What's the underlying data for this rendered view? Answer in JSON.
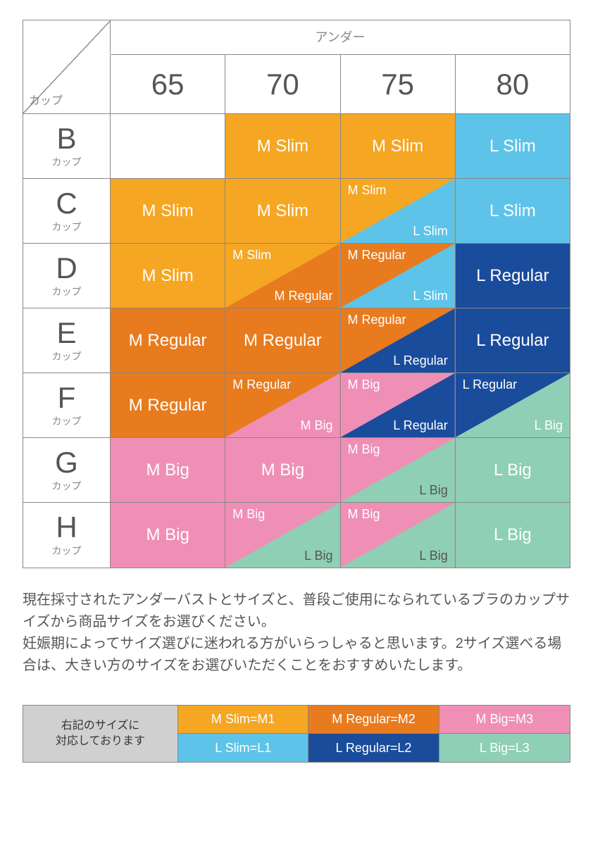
{
  "colors": {
    "m_slim": "#f5a623",
    "l_slim": "#5ec3e8",
    "m_regular": "#e87b1e",
    "l_regular": "#1a4c9c",
    "m_big": "#ef8fb6",
    "l_big": "#8fcfb5",
    "grey": "#d0d0d0"
  },
  "header": {
    "under": "アンダー",
    "cup": "カップ",
    "cols": [
      "65",
      "70",
      "75",
      "80"
    ]
  },
  "rows_label_sub": "カップ",
  "rows": [
    "B",
    "C",
    "D",
    "E",
    "F",
    "G",
    "H"
  ],
  "cells": {
    "B": [
      {
        "type": "empty"
      },
      {
        "type": "solid",
        "bg": "m_slim",
        "label": "M Slim",
        "txt": "white"
      },
      {
        "type": "solid",
        "bg": "m_slim",
        "label": "M Slim",
        "txt": "white"
      },
      {
        "type": "solid",
        "bg": "l_slim",
        "label": "L Slim",
        "txt": "white"
      }
    ],
    "C": [
      {
        "type": "solid",
        "bg": "m_slim",
        "label": "M Slim",
        "txt": "white"
      },
      {
        "type": "solid",
        "bg": "m_slim",
        "label": "M Slim",
        "txt": "white"
      },
      {
        "type": "split",
        "top_bg": "m_slim",
        "bot_bg": "l_slim",
        "top_label": "M Slim",
        "bot_label": "L Slim",
        "top_txt": "white",
        "bot_txt": "white"
      },
      {
        "type": "solid",
        "bg": "l_slim",
        "label": "L Slim",
        "txt": "white"
      }
    ],
    "D": [
      {
        "type": "solid",
        "bg": "m_slim",
        "label": "M Slim",
        "txt": "white"
      },
      {
        "type": "split",
        "top_bg": "m_slim",
        "bot_bg": "m_regular",
        "top_label": "M Slim",
        "bot_label": "M Regular",
        "top_txt": "white",
        "bot_txt": "white"
      },
      {
        "type": "split",
        "top_bg": "m_regular",
        "bot_bg": "l_slim",
        "top_label": "M Regular",
        "bot_label": "L Slim",
        "top_txt": "white",
        "bot_txt": "white"
      },
      {
        "type": "solid",
        "bg": "l_regular",
        "label": "L Regular",
        "txt": "white"
      }
    ],
    "E": [
      {
        "type": "solid",
        "bg": "m_regular",
        "label": "M Regular",
        "txt": "white"
      },
      {
        "type": "solid",
        "bg": "m_regular",
        "label": "M Regular",
        "txt": "white"
      },
      {
        "type": "split",
        "top_bg": "m_regular",
        "bot_bg": "l_regular",
        "top_label": "M Regular",
        "bot_label": "L Regular",
        "top_txt": "white",
        "bot_txt": "white"
      },
      {
        "type": "solid",
        "bg": "l_regular",
        "label": "L Regular",
        "txt": "white"
      }
    ],
    "F": [
      {
        "type": "solid",
        "bg": "m_regular",
        "label": "M Regular",
        "txt": "white"
      },
      {
        "type": "split",
        "top_bg": "m_regular",
        "bot_bg": "m_big",
        "top_label": "M Regular",
        "bot_label": "M Big",
        "top_txt": "white",
        "bot_txt": "white"
      },
      {
        "type": "split",
        "top_bg": "m_big",
        "bot_bg": "l_regular",
        "top_label": "M Big",
        "bot_label": "L Regular",
        "top_txt": "white",
        "bot_txt": "white"
      },
      {
        "type": "split",
        "top_bg": "l_regular",
        "bot_bg": "l_big",
        "top_label": "L Regular",
        "bot_label": "L Big",
        "top_txt": "white",
        "bot_txt": "white"
      }
    ],
    "G": [
      {
        "type": "solid",
        "bg": "m_big",
        "label": "M Big",
        "txt": "white"
      },
      {
        "type": "solid",
        "bg": "m_big",
        "label": "M Big",
        "txt": "white"
      },
      {
        "type": "split",
        "top_bg": "m_big",
        "bot_bg": "l_big",
        "top_label": "M Big",
        "bot_label": "L Big",
        "top_txt": "white",
        "bot_txt": "dark"
      },
      {
        "type": "solid",
        "bg": "l_big",
        "label": "L Big",
        "txt": "white"
      }
    ],
    "H": [
      {
        "type": "solid",
        "bg": "m_big",
        "label": "M Big",
        "txt": "white"
      },
      {
        "type": "split",
        "top_bg": "m_big",
        "bot_bg": "l_big",
        "top_label": "M Big",
        "bot_label": "L Big",
        "top_txt": "white",
        "bot_txt": "dark"
      },
      {
        "type": "split",
        "top_bg": "m_big",
        "bot_bg": "l_big",
        "top_label": "M Big",
        "bot_label": "L Big",
        "top_txt": "white",
        "bot_txt": "dark"
      },
      {
        "type": "solid",
        "bg": "l_big",
        "label": "L Big",
        "txt": "white"
      }
    ]
  },
  "note_lines": [
    "現在採寸されたアンダーバストとサイズと、普段ご使用になられているブラのカップサイズから商品サイズをお選びください。",
    "妊娠期によってサイズ選びに迷われる方がいらっしゃると思います。2サイズ選べる場合は、大きい方のサイズをお選びいただくことをおすすめいたします。"
  ],
  "legend": {
    "head": "右記のサイズに\n対応しております",
    "items": [
      {
        "bg": "m_slim",
        "label": "M Slim=M1",
        "txt": "white"
      },
      {
        "bg": "m_regular",
        "label": "M Regular=M2",
        "txt": "white"
      },
      {
        "bg": "m_big",
        "label": "M Big=M3",
        "txt": "dark"
      },
      {
        "bg": "l_slim",
        "label": "L Slim=L1",
        "txt": "white"
      },
      {
        "bg": "l_regular",
        "label": "L Regular=L2",
        "txt": "white"
      },
      {
        "bg": "l_big",
        "label": "L Big=L3",
        "txt": "dark"
      }
    ]
  }
}
